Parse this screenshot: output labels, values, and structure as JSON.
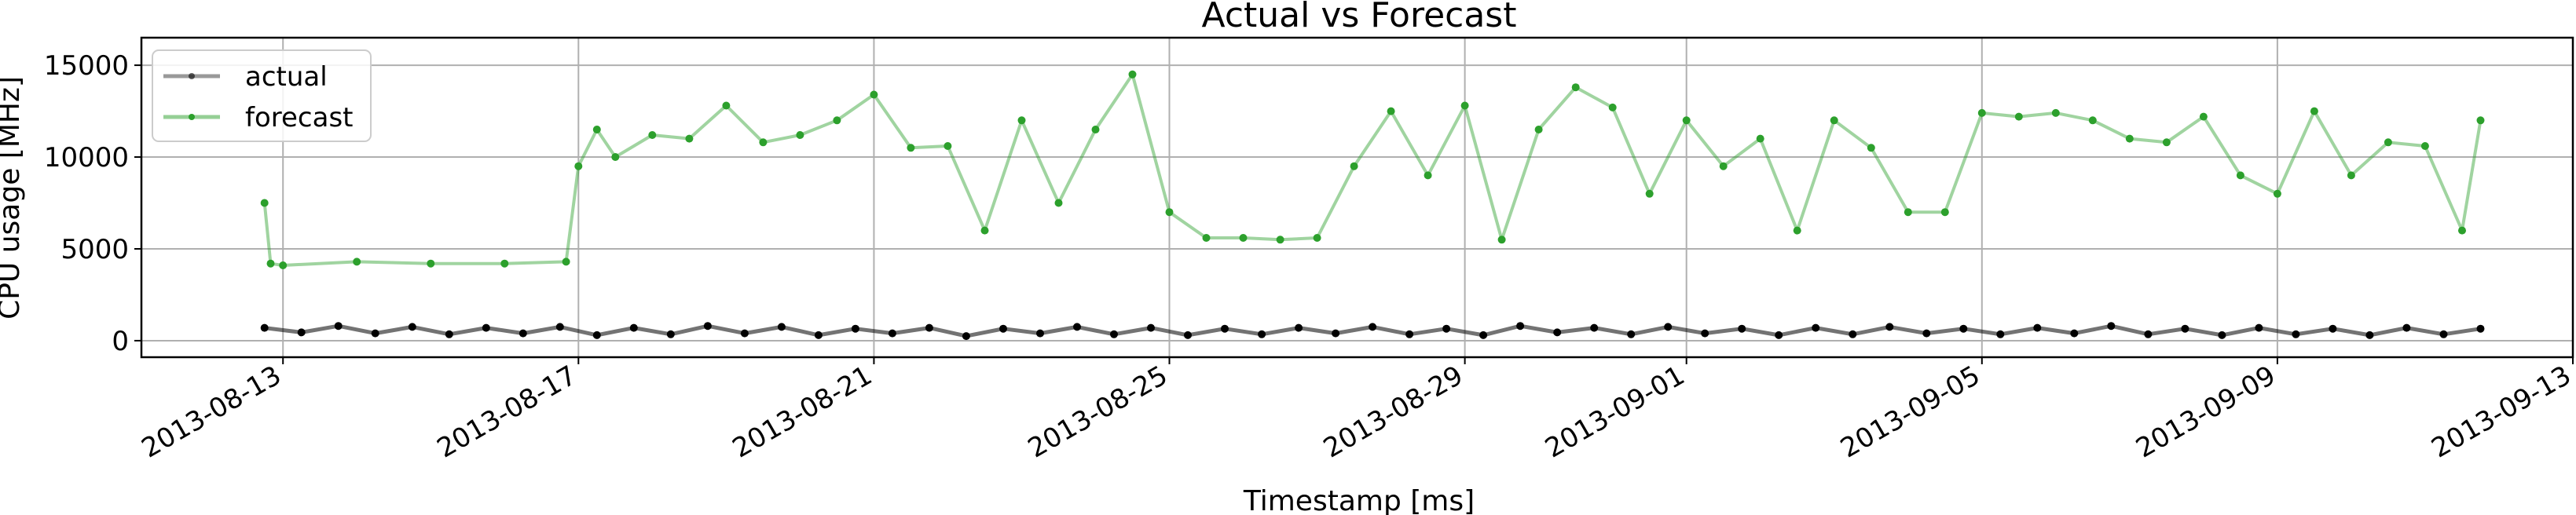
{
  "chart_data": {
    "type": "line",
    "title": "Actual vs Forecast",
    "xlabel": "Timestamp [ms]",
    "ylabel": "CPU usage [MHz]",
    "x_tick_labels": [
      "2013-08-13",
      "2013-08-17",
      "2013-08-21",
      "2013-08-25",
      "2013-08-29",
      "2013-09-01",
      "2013-09-05",
      "2013-09-09",
      "2013-09-13"
    ],
    "y_ticks": [
      0,
      5000,
      10000,
      15000
    ],
    "ylim": [
      -900,
      16500
    ],
    "xlim": [
      "2013-08-11T02:00",
      "2013-09-13T00:00"
    ],
    "grid": true,
    "legend_position": "top-left",
    "series": [
      {
        "name": "actual",
        "color": "#000000",
        "x": [
          "2013-08-12T18:00",
          "2013-08-13T06:00",
          "2013-08-13T18:00",
          "2013-08-14T06:00",
          "2013-08-14T18:00",
          "2013-08-15T06:00",
          "2013-08-15T18:00",
          "2013-08-16T06:00",
          "2013-08-16T18:00",
          "2013-08-17T06:00",
          "2013-08-17T18:00",
          "2013-08-18T06:00",
          "2013-08-18T18:00",
          "2013-08-19T06:00",
          "2013-08-19T18:00",
          "2013-08-20T06:00",
          "2013-08-20T18:00",
          "2013-08-21T06:00",
          "2013-08-21T18:00",
          "2013-08-22T06:00",
          "2013-08-22T18:00",
          "2013-08-23T06:00",
          "2013-08-23T18:00",
          "2013-08-24T06:00",
          "2013-08-24T18:00",
          "2013-08-25T06:00",
          "2013-08-25T18:00",
          "2013-08-26T06:00",
          "2013-08-26T18:00",
          "2013-08-27T06:00",
          "2013-08-27T18:00",
          "2013-08-28T06:00",
          "2013-08-28T18:00",
          "2013-08-29T06:00",
          "2013-08-29T18:00",
          "2013-08-30T06:00",
          "2013-08-30T18:00",
          "2013-08-31T06:00",
          "2013-08-31T18:00",
          "2013-09-01T06:00",
          "2013-09-01T18:00",
          "2013-09-02T06:00",
          "2013-09-02T18:00",
          "2013-09-03T06:00",
          "2013-09-03T18:00",
          "2013-09-04T06:00",
          "2013-09-04T18:00",
          "2013-09-05T06:00",
          "2013-09-05T18:00",
          "2013-09-06T06:00",
          "2013-09-06T18:00",
          "2013-09-07T06:00",
          "2013-09-07T18:00",
          "2013-09-08T06:00",
          "2013-09-08T18:00",
          "2013-09-09T06:00",
          "2013-09-09T18:00",
          "2013-09-10T06:00",
          "2013-09-10T18:00",
          "2013-09-11T06:00",
          "2013-09-11T18:00"
        ],
        "y": [
          700,
          450,
          800,
          400,
          750,
          350,
          700,
          400,
          750,
          300,
          700,
          350,
          800,
          400,
          750,
          300,
          650,
          400,
          700,
          250,
          650,
          400,
          750,
          350,
          700,
          300,
          650,
          350,
          700,
          400,
          750,
          350,
          650,
          300,
          800,
          450,
          700,
          350,
          750,
          400,
          650,
          300,
          700,
          350,
          750,
          400,
          650,
          350,
          700,
          400,
          800,
          350,
          650,
          300,
          700,
          350,
          650,
          300,
          700,
          350,
          650
        ]
      },
      {
        "name": "forecast",
        "color": "#2ca02c",
        "x": [
          "2013-08-12T18:00",
          "2013-08-12T20:00",
          "2013-08-13T00:00",
          "2013-08-14T00:00",
          "2013-08-15T00:00",
          "2013-08-16T00:00",
          "2013-08-16T20:00",
          "2013-08-17T00:00",
          "2013-08-17T06:00",
          "2013-08-17T12:00",
          "2013-08-18T00:00",
          "2013-08-18T12:00",
          "2013-08-19T00:00",
          "2013-08-19T12:00",
          "2013-08-20T00:00",
          "2013-08-20T12:00",
          "2013-08-21T00:00",
          "2013-08-21T12:00",
          "2013-08-22T00:00",
          "2013-08-22T12:00",
          "2013-08-23T00:00",
          "2013-08-23T12:00",
          "2013-08-24T00:00",
          "2013-08-24T12:00",
          "2013-08-25T00:00",
          "2013-08-25T12:00",
          "2013-08-26T00:00",
          "2013-08-26T12:00",
          "2013-08-27T00:00",
          "2013-08-27T12:00",
          "2013-08-28T00:00",
          "2013-08-28T12:00",
          "2013-08-29T00:00",
          "2013-08-29T12:00",
          "2013-08-30T00:00",
          "2013-08-30T12:00",
          "2013-08-31T00:00",
          "2013-08-31T12:00",
          "2013-09-01T00:00",
          "2013-09-01T12:00",
          "2013-09-02T00:00",
          "2013-09-02T12:00",
          "2013-09-03T00:00",
          "2013-09-03T12:00",
          "2013-09-04T00:00",
          "2013-09-04T12:00",
          "2013-09-05T00:00",
          "2013-09-05T12:00",
          "2013-09-06T00:00",
          "2013-09-06T12:00",
          "2013-09-07T00:00",
          "2013-09-07T12:00",
          "2013-09-08T00:00",
          "2013-09-08T12:00",
          "2013-09-09T00:00",
          "2013-09-09T12:00",
          "2013-09-10T00:00",
          "2013-09-10T12:00",
          "2013-09-11T00:00",
          "2013-09-11T12:00",
          "2013-09-11T18:00"
        ],
        "y": [
          7500,
          4200,
          4100,
          4300,
          4200,
          4200,
          4300,
          9500,
          11500,
          10000,
          11200,
          11000,
          12800,
          10800,
          11200,
          12000,
          13400,
          10500,
          10600,
          6000,
          12000,
          7500,
          11500,
          14500,
          7000,
          5600,
          5600,
          5500,
          5600,
          9500,
          12500,
          9000,
          12800,
          5500,
          11500,
          13800,
          12700,
          8000,
          12000,
          9500,
          11000,
          6000,
          12000,
          10500,
          7000,
          7000,
          12400,
          12200,
          12400,
          12000,
          11000,
          10800,
          12200,
          9000,
          8000,
          12500,
          9000,
          10800,
          10600,
          6000,
          12000
        ]
      }
    ]
  }
}
